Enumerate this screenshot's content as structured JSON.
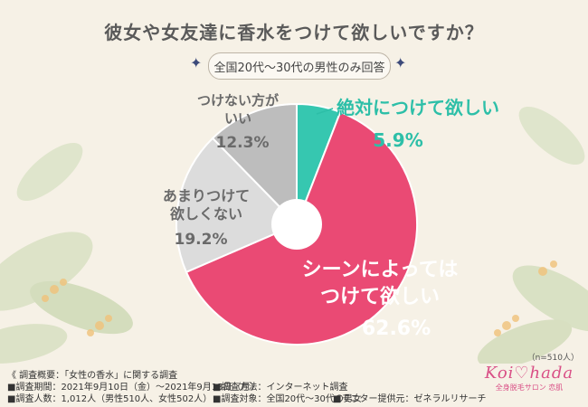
{
  "title": "彼女や女友達に香水をつけて欲しいですか？",
  "subtitle": "全国20代〜30代の男性のみ回答",
  "sample_note": "（n=510人）",
  "colors": {
    "slice_1": "#36c7b0",
    "slice_2": "#ea4a74",
    "slice_3": "#dcdcdc",
    "slice_4": "#bdbdbd",
    "label_pink": "#ea4a74",
    "label_teal": "#2dbfa8",
    "label_gray": "#6a6a6a"
  },
  "chart_data": {
    "type": "pie",
    "title": "彼女や女友達に香水をつけて欲しいですか？",
    "slices": [
      {
        "label_lines": [
          "絶対につけて欲しい"
        ],
        "value": 5.9,
        "display": "5.9%"
      },
      {
        "label_lines": [
          "シーンによっては",
          "つけて欲しい"
        ],
        "value": 62.6,
        "display": "62.6%"
      },
      {
        "label_lines": [
          "あまりつけて",
          "欲しくない"
        ],
        "value": 19.2,
        "display": "19.2%"
      },
      {
        "label_lines": [
          "つけない方が",
          "いい"
        ],
        "value": 12.3,
        "display": "12.3%"
      }
    ]
  },
  "footer": {
    "overview": "《 調査概要：「女性の香水」に関する調査",
    "period": "■調査期間：2021年9月10日（金）〜2021年9月13日（月）",
    "count": "■調査人数：1,012人（男性510人、女性502人）",
    "method": "■調査方法：インターネット調査",
    "target": "■調査対象：全国20代〜30代の男女",
    "provider": "■モニター提供元：ゼネラルリサーチ"
  },
  "logo": {
    "brand": "Koi♡hada",
    "tagline": "全身脱毛サロン 恋肌"
  }
}
